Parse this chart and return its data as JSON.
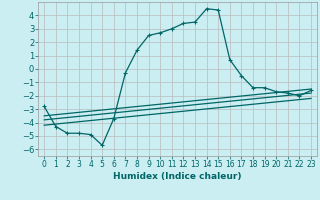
{
  "xlabel": "Humidex (Indice chaleur)",
  "ylabel": "",
  "background_color": "#cbeef3",
  "grid_color": "#bbbbbb",
  "line_color": "#006666",
  "xlim": [
    -0.5,
    23.5
  ],
  "ylim": [
    -6.5,
    5.0
  ],
  "x_ticks": [
    0,
    1,
    2,
    3,
    4,
    5,
    6,
    7,
    8,
    9,
    10,
    11,
    12,
    13,
    14,
    15,
    16,
    17,
    18,
    19,
    20,
    21,
    22,
    23
  ],
  "y_ticks": [
    -6,
    -5,
    -4,
    -3,
    -2,
    -1,
    0,
    1,
    2,
    3,
    4
  ],
  "curve1_x": [
    0,
    1,
    2,
    3,
    4,
    5,
    6,
    7,
    8,
    9,
    10,
    11,
    12,
    13,
    14,
    15,
    16,
    17,
    18,
    19,
    20,
    21,
    22,
    23
  ],
  "curve1_y": [
    -2.8,
    -4.3,
    -4.8,
    -4.8,
    -4.9,
    -5.7,
    -3.7,
    -0.3,
    1.4,
    2.5,
    2.7,
    3.0,
    3.4,
    3.5,
    4.5,
    4.4,
    0.7,
    -0.5,
    -1.4,
    -1.4,
    -1.7,
    -1.8,
    -2.0,
    -1.6
  ],
  "curve2_x": [
    0,
    23
  ],
  "curve2_y": [
    -3.5,
    -1.5
  ],
  "curve3_x": [
    0,
    23
  ],
  "curve3_y": [
    -3.8,
    -1.8
  ],
  "curve4_x": [
    0,
    23
  ],
  "curve4_y": [
    -4.2,
    -2.2
  ]
}
